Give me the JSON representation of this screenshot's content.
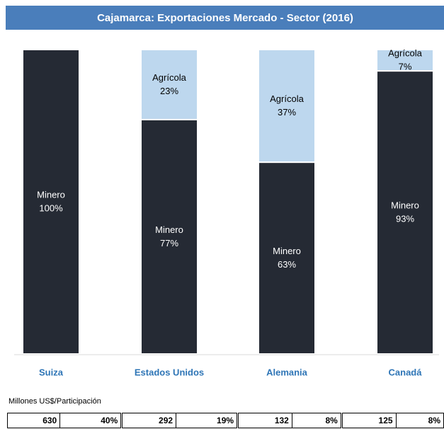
{
  "chart_data": {
    "type": "stacked_bar",
    "title": "Cajamarca: Exportaciones Mercado - Sector (2016)",
    "categories": [
      "Suiza",
      "Estados Unidos",
      "Alemania",
      "Canadá"
    ],
    "series": [
      {
        "name": "Minero",
        "color": "#252a34",
        "values": [
          100,
          77,
          63,
          93
        ],
        "value_labels": [
          "100%",
          "77%",
          "63%",
          "93%"
        ]
      },
      {
        "name": "Agrícola",
        "color": "#bdd7ee",
        "values": [
          0,
          23,
          37,
          7
        ],
        "value_labels": [
          null,
          "23%",
          "37%",
          "7%"
        ]
      }
    ],
    "ylim": [
      0,
      100
    ]
  },
  "table": {
    "note": "Millones US$/Participación",
    "rows": [
      [
        "630",
        "40%",
        "292",
        "19%",
        "132",
        "8%",
        "125",
        "8%"
      ]
    ]
  }
}
